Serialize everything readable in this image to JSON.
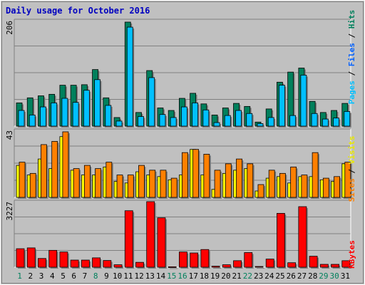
{
  "chart_data": [
    {
      "type": "bar",
      "title": "Daily usage for October 2016",
      "ymax_label": "206",
      "legend": [
        "Pages",
        "Files",
        "Hits"
      ],
      "categories": [
        "1",
        "2",
        "3",
        "4",
        "5",
        "6",
        "7",
        "8",
        "9",
        "10",
        "11",
        "12",
        "13",
        "14",
        "15",
        "16",
        "17",
        "18",
        "19",
        "20",
        "21",
        "22",
        "23",
        "24",
        "25",
        "26",
        "27",
        "28",
        "29",
        "30",
        "31"
      ],
      "series": [
        {
          "name": "Hits",
          "color": "#00805c",
          "values": [
            46,
            56,
            60,
            63,
            81,
            81,
            82,
            112,
            56,
            17,
            206,
            27,
            110,
            36,
            31,
            55,
            65,
            44,
            22,
            36,
            45,
            39,
            8,
            34,
            87,
            107,
            115,
            49,
            27,
            31,
            45
          ]
        },
        {
          "name": "Files",
          "color": "#00c0ff",
          "values": [
            31,
            22,
            38,
            46,
            55,
            47,
            71,
            92,
            41,
            10,
            196,
            19,
            96,
            23,
            17,
            38,
            46,
            32,
            7,
            21,
            31,
            25,
            5,
            17,
            81,
            21,
            101,
            25,
            14,
            16,
            29
          ]
        },
        {
          "name": "Pages",
          "color": "#00c0ff",
          "values": [
            0,
            0,
            0,
            0,
            0,
            0,
            0,
            0,
            0,
            0,
            0,
            0,
            0,
            0,
            0,
            0,
            0,
            0,
            0,
            0,
            0,
            0,
            0,
            0,
            0,
            0,
            0,
            0,
            0,
            0,
            0
          ]
        }
      ]
    },
    {
      "type": "bar",
      "ymax_label": "43",
      "legend": [
        "Sites",
        "Visits"
      ],
      "categories": [
        "1",
        "2",
        "3",
        "4",
        "5",
        "6",
        "7",
        "8",
        "9",
        "10",
        "11",
        "12",
        "13",
        "14",
        "15",
        "16",
        "17",
        "18",
        "19",
        "20",
        "21",
        "22",
        "23",
        "24",
        "25",
        "26",
        "27",
        "28",
        "29",
        "30",
        "31"
      ],
      "series": [
        {
          "name": "Visits",
          "color": "#ffff00",
          "values": [
            20,
            14,
            24,
            18,
            38,
            17,
            14,
            14,
            19,
            10,
            9,
            16,
            14,
            13,
            11,
            14,
            30,
            14,
            5,
            15,
            17,
            18,
            4,
            12,
            13,
            9,
            13,
            13,
            11,
            10,
            21
          ]
        },
        {
          "name": "Sites",
          "color": "#ff8000",
          "values": [
            22,
            15,
            33,
            35,
            41,
            18,
            20,
            18,
            22,
            14,
            14,
            20,
            17,
            17,
            12,
            28,
            30,
            27,
            17,
            21,
            24,
            21,
            8,
            17,
            15,
            19,
            14,
            28,
            12,
            13,
            22
          ]
        }
      ]
    },
    {
      "type": "bar",
      "ymax_label": "3227",
      "legend": [
        "KBytes"
      ],
      "categories": [
        "1",
        "2",
        "3",
        "4",
        "5",
        "6",
        "7",
        "8",
        "9",
        "10",
        "11",
        "12",
        "13",
        "14",
        "15",
        "16",
        "17",
        "18",
        "19",
        "20",
        "21",
        "22",
        "23",
        "24",
        "25",
        "26",
        "27",
        "28",
        "29",
        "30",
        "31"
      ],
      "series": [
        {
          "name": "KBytes",
          "color": "#ff0000",
          "values": [
            910,
            950,
            430,
            830,
            750,
            350,
            350,
            460,
            330,
            120,
            2780,
            240,
            3227,
            2430,
            20,
            750,
            700,
            870,
            50,
            120,
            320,
            720,
            35,
            400,
            2650,
            220,
            2980,
            540,
            140,
            140,
            320
          ]
        }
      ]
    }
  ],
  "weekend_days": [
    1,
    8,
    15,
    16,
    22,
    29,
    30
  ]
}
